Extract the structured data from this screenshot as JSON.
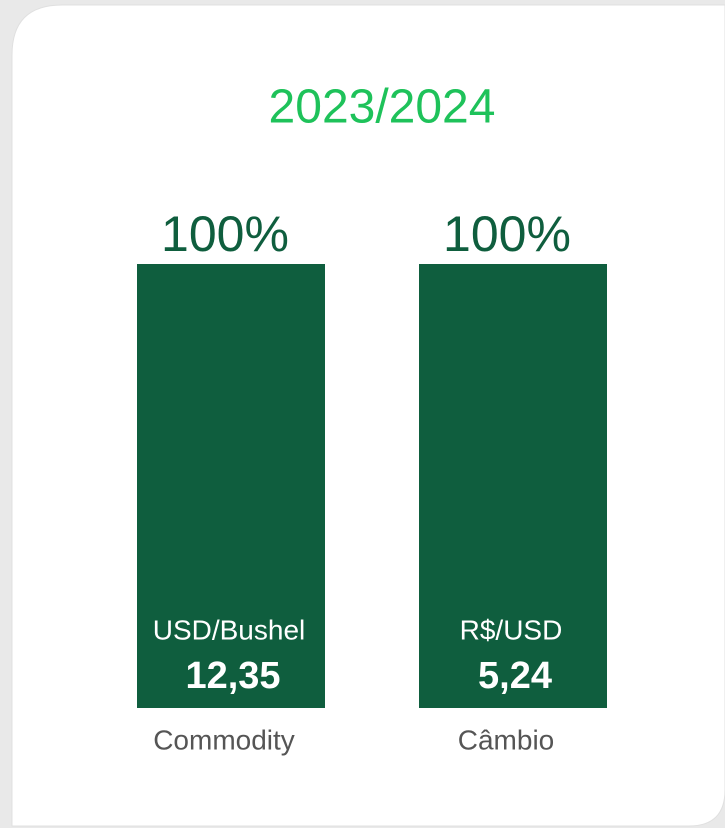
{
  "chart_data": {
    "type": "bar",
    "title": "2023/2024",
    "categories": [
      "Commodity",
      "Câmbio"
    ],
    "values": [
      100,
      100
    ],
    "value_labels": [
      "100%",
      "100%"
    ],
    "color": "#0f5e3e",
    "ylim": [
      0,
      100
    ],
    "annotations": [
      {
        "unit": "USD/Bushel",
        "price": "12,35"
      },
      {
        "unit": "R$/USD",
        "price": "5,24"
      }
    ]
  }
}
